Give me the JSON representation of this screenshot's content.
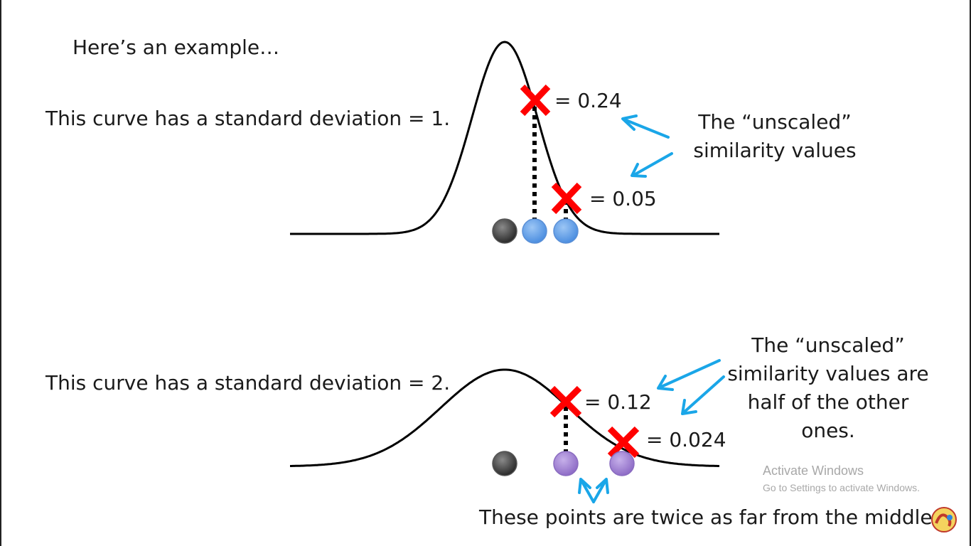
{
  "intro": "Here’s an example…",
  "curve1": {
    "label": "This curve has a standard deviation = 1.",
    "values": [
      "= 0.24",
      "= 0.05"
    ],
    "callout": [
      "The “unscaled”",
      "similarity values"
    ]
  },
  "curve2": {
    "label": "This curve has a standard deviation = 2.",
    "values": [
      "= 0.12",
      "= 0.024"
    ],
    "callout": [
      "The “unscaled”",
      "similarity values are",
      "half of the other",
      "ones."
    ]
  },
  "caption": "These points are twice as far from the middle.",
  "watermark": {
    "title": "Activate Windows",
    "subtitle": "Go to Settings to activate Windows."
  },
  "colors": {
    "curve": "#000000",
    "marker": "#ff0000",
    "arrow": "#1aa6e8",
    "point_gray": "#3a3a3a",
    "point_blue": "#6aa6ec",
    "point_purple": "#a98ad6"
  }
}
